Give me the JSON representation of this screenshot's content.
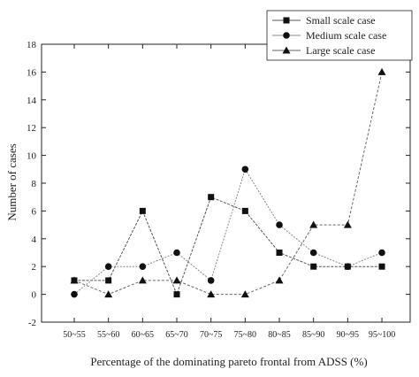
{
  "chart_data": {
    "type": "line",
    "title": "",
    "xlabel": "Percentage of the dominating pareto frontal from ADSS (%)",
    "ylabel": "Number of cases",
    "categories": [
      "50~55",
      "55~60",
      "60~65",
      "65~70",
      "70~75",
      "75~80",
      "80~85",
      "85~90",
      "90~95",
      "95~100"
    ],
    "ylim": [
      -2,
      18
    ],
    "yticks": [
      -2,
      0,
      2,
      4,
      6,
      8,
      10,
      12,
      14,
      16,
      18
    ],
    "grid": false,
    "legend_position": "top-right",
    "series": [
      {
        "name": "Small scale case",
        "marker": "square",
        "color": "#555555",
        "values": [
          1,
          1,
          6,
          0,
          7,
          6,
          3,
          2,
          2,
          2
        ]
      },
      {
        "name": "Medium scale case",
        "marker": "circle",
        "color": "#888888",
        "values": [
          0,
          2,
          2,
          3,
          1,
          9,
          5,
          3,
          2,
          3
        ]
      },
      {
        "name": "Large scale case",
        "marker": "triangle",
        "color": "#666666",
        "values": [
          1,
          0,
          1,
          1,
          0,
          0,
          1,
          5,
          5,
          16
        ]
      }
    ]
  }
}
